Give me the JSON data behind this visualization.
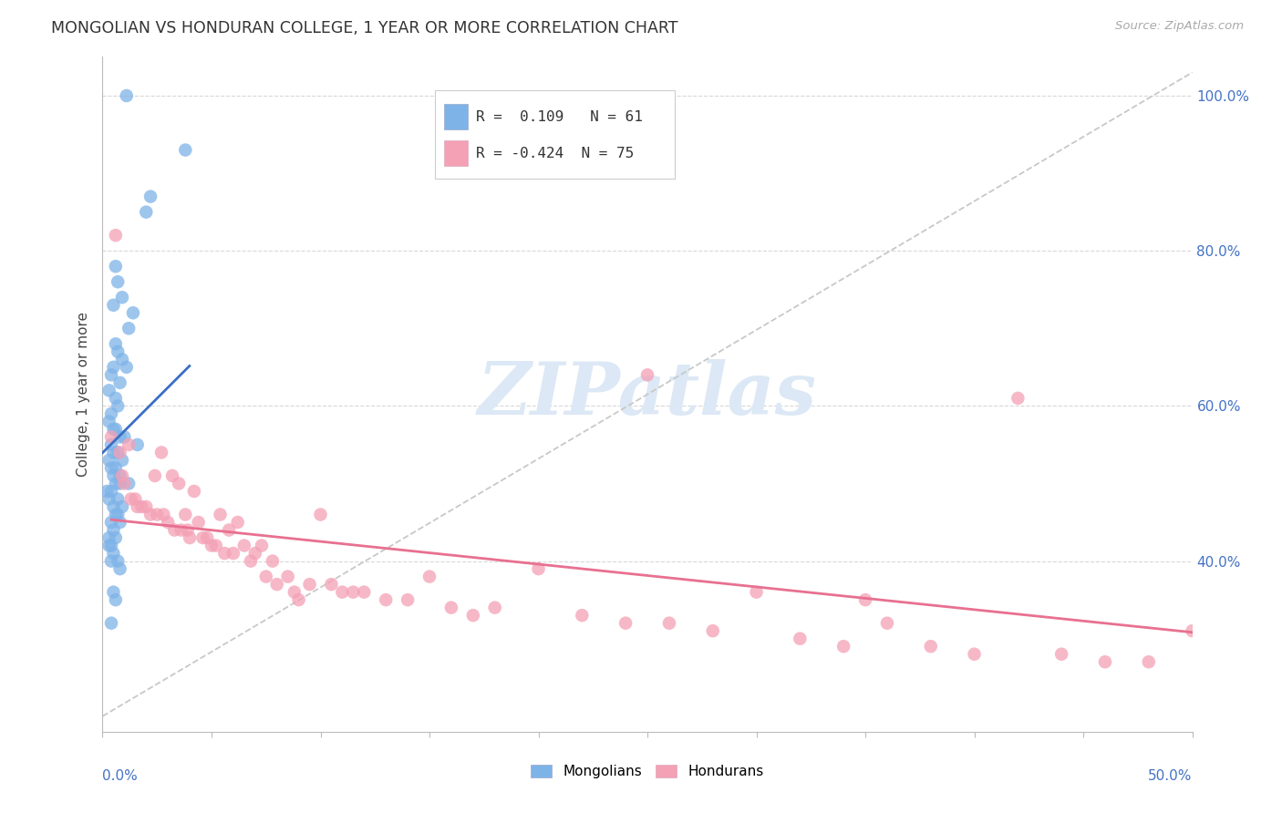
{
  "title": "MONGOLIAN VS HONDURAN COLLEGE, 1 YEAR OR MORE CORRELATION CHART",
  "source": "Source: ZipAtlas.com",
  "ylabel": "College, 1 year or more",
  "xmin": 0.0,
  "xmax": 0.5,
  "ymin": 0.18,
  "ymax": 1.05,
  "mongolian_R": 0.109,
  "mongolian_N": 61,
  "honduran_R": -0.424,
  "honduran_N": 75,
  "blue_color": "#7eb3e8",
  "pink_color": "#f4a0b5",
  "blue_line_color": "#3a6fc4",
  "pink_line_color": "#e87090",
  "dash_line_color": "#c8c8c8",
  "mongolian_x": [
    0.011,
    0.038,
    0.022,
    0.02,
    0.006,
    0.007,
    0.009,
    0.005,
    0.014,
    0.012,
    0.006,
    0.007,
    0.009,
    0.011,
    0.005,
    0.004,
    0.008,
    0.003,
    0.006,
    0.007,
    0.004,
    0.003,
    0.005,
    0.006,
    0.008,
    0.01,
    0.016,
    0.004,
    0.007,
    0.005,
    0.003,
    0.009,
    0.006,
    0.004,
    0.008,
    0.005,
    0.012,
    0.008,
    0.006,
    0.004,
    0.002,
    0.003,
    0.007,
    0.009,
    0.005,
    0.007,
    0.006,
    0.008,
    0.004,
    0.005,
    0.003,
    0.006,
    0.004,
    0.003,
    0.005,
    0.007,
    0.004,
    0.008,
    0.005,
    0.006,
    0.004
  ],
  "mongolian_y": [
    1.0,
    0.93,
    0.87,
    0.85,
    0.78,
    0.76,
    0.74,
    0.73,
    0.72,
    0.7,
    0.68,
    0.67,
    0.66,
    0.65,
    0.65,
    0.64,
    0.63,
    0.62,
    0.61,
    0.6,
    0.59,
    0.58,
    0.57,
    0.57,
    0.56,
    0.56,
    0.55,
    0.55,
    0.54,
    0.54,
    0.53,
    0.53,
    0.52,
    0.52,
    0.51,
    0.51,
    0.5,
    0.5,
    0.5,
    0.49,
    0.49,
    0.48,
    0.48,
    0.47,
    0.47,
    0.46,
    0.46,
    0.45,
    0.45,
    0.44,
    0.43,
    0.43,
    0.42,
    0.42,
    0.41,
    0.4,
    0.4,
    0.39,
    0.36,
    0.35,
    0.32
  ],
  "honduran_x": [
    0.004,
    0.006,
    0.008,
    0.009,
    0.01,
    0.012,
    0.013,
    0.015,
    0.016,
    0.018,
    0.02,
    0.022,
    0.024,
    0.025,
    0.027,
    0.028,
    0.03,
    0.032,
    0.033,
    0.035,
    0.036,
    0.038,
    0.039,
    0.04,
    0.042,
    0.044,
    0.046,
    0.048,
    0.05,
    0.052,
    0.054,
    0.056,
    0.058,
    0.06,
    0.062,
    0.065,
    0.068,
    0.07,
    0.073,
    0.075,
    0.078,
    0.08,
    0.085,
    0.088,
    0.09,
    0.095,
    0.1,
    0.105,
    0.11,
    0.115,
    0.12,
    0.13,
    0.14,
    0.15,
    0.16,
    0.17,
    0.18,
    0.2,
    0.22,
    0.24,
    0.26,
    0.28,
    0.3,
    0.32,
    0.34,
    0.36,
    0.38,
    0.4,
    0.42,
    0.44,
    0.46,
    0.48,
    0.5,
    0.35,
    0.25
  ],
  "honduran_y": [
    0.56,
    0.82,
    0.54,
    0.51,
    0.5,
    0.55,
    0.48,
    0.48,
    0.47,
    0.47,
    0.47,
    0.46,
    0.51,
    0.46,
    0.54,
    0.46,
    0.45,
    0.51,
    0.44,
    0.5,
    0.44,
    0.46,
    0.44,
    0.43,
    0.49,
    0.45,
    0.43,
    0.43,
    0.42,
    0.42,
    0.46,
    0.41,
    0.44,
    0.41,
    0.45,
    0.42,
    0.4,
    0.41,
    0.42,
    0.38,
    0.4,
    0.37,
    0.38,
    0.36,
    0.35,
    0.37,
    0.46,
    0.37,
    0.36,
    0.36,
    0.36,
    0.35,
    0.35,
    0.38,
    0.34,
    0.33,
    0.34,
    0.39,
    0.33,
    0.32,
    0.32,
    0.31,
    0.36,
    0.3,
    0.29,
    0.32,
    0.29,
    0.28,
    0.61,
    0.28,
    0.27,
    0.27,
    0.31,
    0.35,
    0.64
  ]
}
